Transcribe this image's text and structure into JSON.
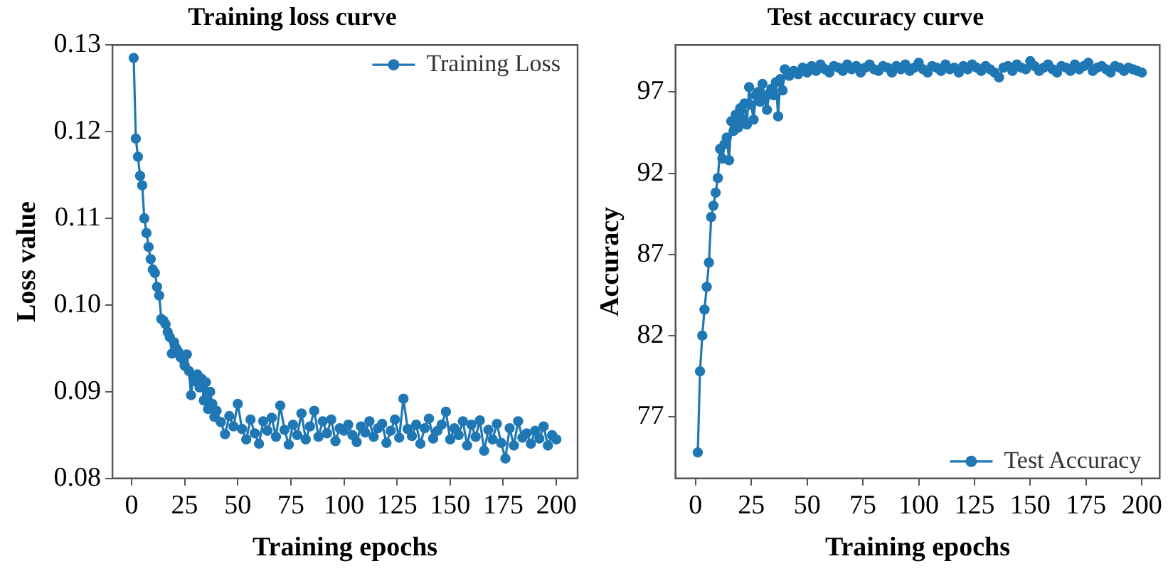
{
  "chart_data": [
    {
      "type": "line",
      "title": "Training loss curve",
      "xlabel": "Training epochs",
      "ylabel": "Loss value",
      "legend": "top right",
      "marker": "circle",
      "grid": false,
      "xlim": [
        -9,
        210
      ],
      "xticks": [
        0,
        25,
        50,
        75,
        100,
        125,
        150,
        175,
        200
      ],
      "ylim": [
        0.08,
        0.13
      ],
      "yticks": [
        0.08,
        0.09,
        {
          "value": 0.1,
          "label": "0.10"
        },
        0.11,
        0.12,
        0.13
      ],
      "series": [
        {
          "name": "Training Loss",
          "color": "#1f77b4",
          "x": [
            1,
            2,
            3,
            4,
            5,
            6,
            7,
            8,
            9,
            10,
            11,
            12,
            13,
            14,
            15,
            16,
            17,
            18,
            19,
            20,
            21,
            22,
            23,
            24,
            25,
            26,
            27,
            28,
            29,
            30,
            31,
            32,
            33,
            34,
            35,
            36,
            37,
            38,
            39,
            40,
            42,
            44,
            46,
            48,
            50,
            52,
            54,
            56,
            58,
            60,
            62,
            64,
            66,
            68,
            70,
            72,
            74,
            76,
            78,
            80,
            82,
            84,
            86,
            88,
            90,
            92,
            94,
            96,
            98,
            100,
            102,
            104,
            106,
            108,
            110,
            112,
            114,
            116,
            118,
            120,
            122,
            124,
            126,
            128,
            130,
            132,
            134,
            136,
            138,
            140,
            142,
            144,
            146,
            148,
            150,
            152,
            154,
            156,
            158,
            160,
            162,
            164,
            166,
            168,
            170,
            172,
            174,
            176,
            178,
            180,
            182,
            184,
            186,
            188,
            190,
            192,
            194,
            196,
            198,
            200
          ],
          "values": [
            0.1285,
            0.1192,
            0.1171,
            0.1149,
            0.1138,
            0.11,
            0.1083,
            0.1067,
            0.1053,
            0.1041,
            0.1037,
            0.1021,
            0.1011,
            0.0984,
            0.0982,
            0.0978,
            0.0969,
            0.0963,
            0.0944,
            0.0957,
            0.095,
            0.0946,
            0.094,
            0.0938,
            0.093,
            0.0943,
            0.0924,
            0.0896,
            0.0918,
            0.0912,
            0.092,
            0.0905,
            0.0915,
            0.089,
            0.0911,
            0.088,
            0.09,
            0.0886,
            0.0871,
            0.0878,
            0.0865,
            0.0851,
            0.0872,
            0.086,
            0.0886,
            0.0857,
            0.0845,
            0.0868,
            0.0852,
            0.084,
            0.0866,
            0.0855,
            0.087,
            0.0848,
            0.0884,
            0.0856,
            0.0839,
            0.0862,
            0.085,
            0.0875,
            0.0845,
            0.086,
            0.0878,
            0.0848,
            0.0866,
            0.0852,
            0.0868,
            0.0843,
            0.0858,
            0.0855,
            0.0862,
            0.085,
            0.0842,
            0.086,
            0.0853,
            0.0866,
            0.0848,
            0.0858,
            0.0863,
            0.0841,
            0.0855,
            0.0868,
            0.0847,
            0.0892,
            0.0857,
            0.0849,
            0.0862,
            0.084,
            0.0858,
            0.0869,
            0.0846,
            0.0855,
            0.0862,
            0.0877,
            0.0845,
            0.0858,
            0.085,
            0.0866,
            0.0838,
            0.0862,
            0.0848,
            0.0867,
            0.0832,
            0.0856,
            0.0845,
            0.0863,
            0.0841,
            0.0823,
            0.0858,
            0.0838,
            0.0866,
            0.0847,
            0.0852,
            0.084,
            0.0855,
            0.0846,
            0.086,
            0.0838,
            0.085,
            0.0845
          ]
        }
      ]
    },
    {
      "type": "line",
      "title": "Test accuracy curve",
      "xlabel": "Training epochs",
      "ylabel": "Accuracy",
      "legend": "bottom right",
      "marker": "circle",
      "grid": false,
      "xlim": [
        -9,
        208
      ],
      "xticks": [
        0,
        25,
        50,
        75,
        100,
        125,
        150,
        175,
        200
      ],
      "ylim": [
        73.2,
        99.9
      ],
      "yticks": [
        77,
        82,
        87,
        92,
        97
      ],
      "series": [
        {
          "name": "Test Accuracy",
          "color": "#1f77b4",
          "x": [
            1,
            2,
            3,
            4,
            5,
            6,
            7,
            8,
            9,
            10,
            11,
            12,
            13,
            14,
            15,
            16,
            17,
            18,
            19,
            20,
            21,
            22,
            23,
            24,
            25,
            26,
            27,
            28,
            29,
            30,
            31,
            32,
            33,
            34,
            35,
            36,
            37,
            38,
            39,
            40,
            42,
            44,
            46,
            48,
            50,
            52,
            54,
            56,
            58,
            60,
            62,
            64,
            66,
            68,
            70,
            72,
            74,
            76,
            78,
            80,
            82,
            84,
            86,
            88,
            90,
            92,
            94,
            96,
            98,
            100,
            102,
            104,
            106,
            108,
            110,
            112,
            114,
            116,
            118,
            120,
            122,
            124,
            126,
            128,
            130,
            132,
            134,
            136,
            138,
            140,
            142,
            144,
            146,
            148,
            150,
            152,
            154,
            156,
            158,
            160,
            162,
            164,
            166,
            168,
            170,
            172,
            174,
            176,
            178,
            180,
            182,
            184,
            186,
            188,
            190,
            192,
            194,
            196,
            198,
            200
          ],
          "values": [
            74.8,
            79.8,
            82,
            83.6,
            85,
            86.5,
            89.3,
            90,
            90.8,
            91.7,
            93.5,
            92.9,
            93.8,
            94.2,
            92.8,
            95.2,
            94.6,
            95.6,
            94.8,
            96,
            95.3,
            96.3,
            95,
            97.3,
            96.2,
            95.3,
            96.8,
            97,
            96.4,
            97.5,
            96.6,
            95.9,
            96.9,
            97.2,
            96.8,
            97.6,
            95.5,
            97.8,
            97.1,
            98.4,
            98,
            98.3,
            98.1,
            98.5,
            98.2,
            98.6,
            98.3,
            98.7,
            98.4,
            98.2,
            98.6,
            98.5,
            98.3,
            98.7,
            98.4,
            98.6,
            98.2,
            98.5,
            98.7,
            98.4,
            98.3,
            98.6,
            98.5,
            98.2,
            98.6,
            98.4,
            98.7,
            98.3,
            98.5,
            98.8,
            98.4,
            98.2,
            98.6,
            98.5,
            98.3,
            98.7,
            98.4,
            98.5,
            98.2,
            98.6,
            98.4,
            98.7,
            98.5,
            98.3,
            98.6,
            98.4,
            98.2,
            97.9,
            98.5,
            98.6,
            98.3,
            98.7,
            98.5,
            98.4,
            98.9,
            98.6,
            98.3,
            98.5,
            98.7,
            98.4,
            98.2,
            98.6,
            98.5,
            98.3,
            98.7,
            98.4,
            98.6,
            98.8,
            98.3,
            98.5,
            98.6,
            98.4,
            98.2,
            98.6,
            98.5,
            98.3,
            98.5,
            98.4,
            98.3,
            98.2
          ]
        }
      ]
    }
  ]
}
